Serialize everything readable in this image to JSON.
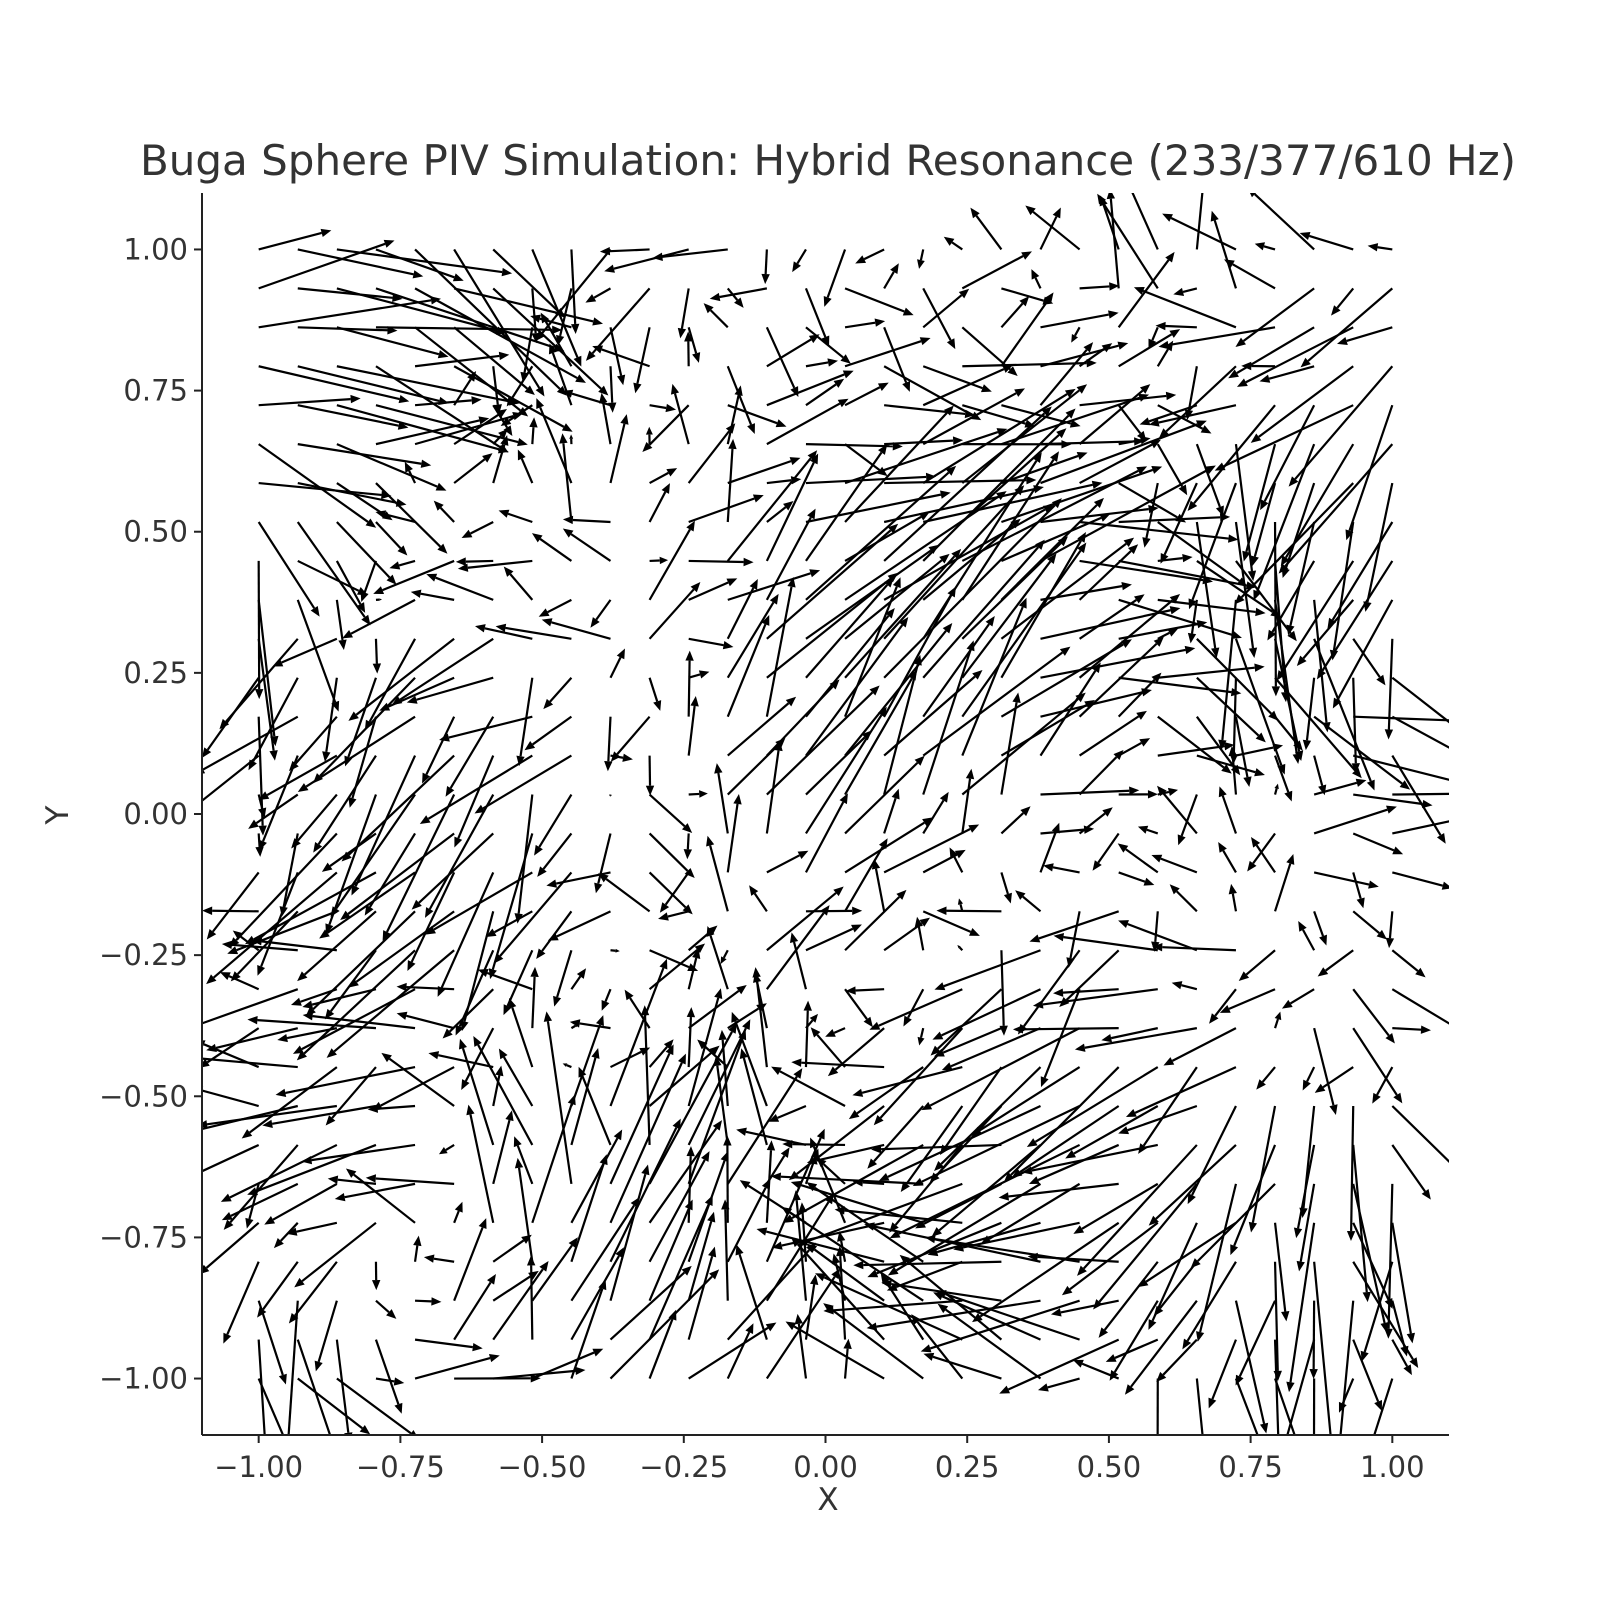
{
  "chart_data": {
    "type": "quiver",
    "title": "Buga Sphere PIV Simulation: Hybrid Resonance (233/377/610 Hz)",
    "xlabel": "X",
    "ylabel": "Y",
    "xlim": [
      -1.1,
      1.1
    ],
    "ylim": [
      -1.1,
      1.1
    ],
    "xticks": [
      -1.0,
      -0.75,
      -0.5,
      -0.25,
      0.0,
      0.25,
      0.5,
      0.75,
      1.0
    ],
    "yticks": [
      -1.0,
      -0.75,
      -0.5,
      -0.25,
      0.0,
      0.25,
      0.5,
      0.75,
      1.0
    ],
    "xtick_labels": [
      "−1.00",
      "−0.75",
      "−0.50",
      "−0.25",
      "0.00",
      "0.25",
      "0.50",
      "0.75",
      "1.00"
    ],
    "ytick_labels": [
      "−1.00",
      "−0.75",
      "−0.50",
      "−0.25",
      "0.00",
      "0.25",
      "0.50",
      "0.75",
      "1.00"
    ],
    "grid": false,
    "arrow_color": "#000000",
    "grid_points": {
      "x_start": -1.0,
      "x_end": 1.0,
      "x_count": 30,
      "y_start": -1.0,
      "y_end": 1.0,
      "y_count": 30
    },
    "field_frequencies_hz": [
      233,
      377,
      610
    ],
    "vectors_note_free": true
  }
}
